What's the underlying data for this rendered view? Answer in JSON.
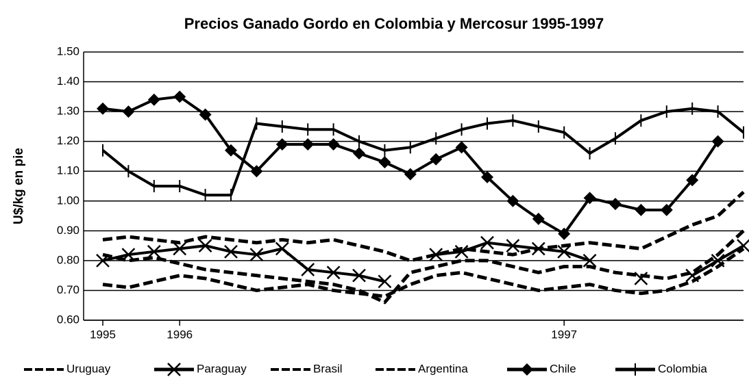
{
  "chart_data": {
    "type": "line",
    "title": "Precios Ganado Gordo en Colombia y  Mercosur 1995-1997",
    "y_label": "U$/kg en pie",
    "categories": [
      "1995",
      null,
      null,
      "1996",
      null,
      null,
      null,
      null,
      null,
      null,
      null,
      null,
      null,
      null,
      null,
      null,
      null,
      null,
      "1997",
      null,
      null,
      null,
      null,
      null,
      null,
      null
    ],
    "ylim": [
      0.6,
      1.5
    ],
    "yticks": [
      {
        "value": 0.6,
        "label": "0.60"
      },
      {
        "value": 0.7,
        "label": "0.70"
      },
      {
        "value": 0.8,
        "label": "0.80"
      },
      {
        "value": 0.9,
        "label": "0.90"
      },
      {
        "value": 1.0,
        "label": "1.00"
      },
      {
        "value": 1.1,
        "label": "1.10"
      },
      {
        "value": 1.2,
        "label": "1.20"
      },
      {
        "value": 1.3,
        "label": "1.30"
      },
      {
        "value": 1.4,
        "label": "1.40"
      },
      {
        "value": 1.5,
        "label": "1.50"
      }
    ],
    "grid": true,
    "legend": "bottom",
    "series": [
      {
        "name": "Uruguay",
        "color": "#000000",
        "marker": "none",
        "dashed": true,
        "values": [
          0.72,
          0.71,
          0.73,
          0.75,
          0.74,
          0.72,
          0.7,
          0.71,
          0.72,
          0.7,
          0.69,
          0.68,
          0.72,
          0.75,
          0.76,
          0.74,
          0.72,
          0.7,
          0.71,
          0.72,
          0.7,
          0.69,
          0.7,
          0.73,
          0.78,
          0.84
        ]
      },
      {
        "name": "Paraguay",
        "color": "#000000",
        "marker": "x",
        "dashed": false,
        "values": [
          0.8,
          0.82,
          0.83,
          0.84,
          0.85,
          0.83,
          0.82,
          0.84,
          0.77,
          0.76,
          0.75,
          0.73,
          null,
          0.82,
          0.83,
          0.86,
          0.85,
          0.84,
          0.83,
          0.8,
          null,
          0.74,
          null,
          0.75,
          0.8,
          0.85
        ]
      },
      {
        "name": "Brasil",
        "color": "#000000",
        "marker": "none",
        "dashed": true,
        "values": [
          0.87,
          0.88,
          0.87,
          0.86,
          0.88,
          0.87,
          0.86,
          0.87,
          0.86,
          0.87,
          0.85,
          0.83,
          0.8,
          0.82,
          0.84,
          0.83,
          0.82,
          0.84,
          0.85,
          0.86,
          0.85,
          0.84,
          0.88,
          0.92,
          0.95,
          1.03
        ]
      },
      {
        "name": "Argentina",
        "color": "#000000",
        "marker": "none",
        "dashed": true,
        "values": [
          0.82,
          0.8,
          0.81,
          0.79,
          0.77,
          0.76,
          0.75,
          0.74,
          0.73,
          0.72,
          0.7,
          0.66,
          0.76,
          0.78,
          0.8,
          0.8,
          0.78,
          0.76,
          0.78,
          0.78,
          0.76,
          0.75,
          0.74,
          0.76,
          0.82,
          0.9
        ]
      },
      {
        "name": "Chile",
        "color": "#000000",
        "marker": "diamond",
        "dashed": false,
        "values": [
          1.31,
          1.3,
          1.34,
          1.35,
          1.29,
          1.17,
          1.1,
          1.19,
          1.19,
          1.19,
          1.16,
          1.13,
          1.09,
          1.14,
          1.18,
          1.08,
          1.0,
          0.94,
          0.89,
          1.01,
          0.99,
          0.97,
          0.97,
          1.07,
          1.2,
          null
        ]
      },
      {
        "name": "Colombia",
        "color": "#000000",
        "marker": "tick",
        "dashed": false,
        "values": [
          1.17,
          1.1,
          1.05,
          1.05,
          1.02,
          1.02,
          1.26,
          1.25,
          1.24,
          1.24,
          1.2,
          1.17,
          1.18,
          1.21,
          1.24,
          1.26,
          1.27,
          1.25,
          1.23,
          1.16,
          1.21,
          1.27,
          1.3,
          1.31,
          1.3,
          1.23
        ]
      }
    ]
  }
}
